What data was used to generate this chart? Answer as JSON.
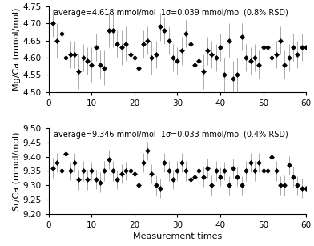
{
  "mg_avg": 4.618,
  "mg_sigma": 0.039,
  "sr_avg": 9.346,
  "sr_sigma": 0.033,
  "mg_title": "average=4.618 mmol/mol  1σ=0.039 mmol/mol (0.8% RSD)",
  "sr_title": "average=9.346 mmol/mol  1σ=0.033 mmol/mol (0.4% RSD)",
  "mg_ylabel": "Mg/Ca (mmol/mol)",
  "sr_ylabel": "Sr/Ca (mmol/mol)",
  "xlabel": "Measurement times",
  "mg_ylim": [
    4.5,
    4.75
  ],
  "sr_ylim": [
    9.2,
    9.5
  ],
  "mg_yticks": [
    4.5,
    4.55,
    4.6,
    4.65,
    4.7,
    4.75
  ],
  "sr_yticks": [
    9.2,
    9.25,
    9.3,
    9.35,
    9.4,
    9.45,
    9.5
  ],
  "xlim": [
    0,
    60
  ],
  "xticks": [
    0,
    10,
    20,
    30,
    40,
    50,
    60
  ],
  "mg_y": [
    4.7,
    4.65,
    4.67,
    4.6,
    4.61,
    4.61,
    4.56,
    4.6,
    4.59,
    4.58,
    4.63,
    4.58,
    4.57,
    4.68,
    4.68,
    4.64,
    4.63,
    4.64,
    4.61,
    4.6,
    4.57,
    4.64,
    4.65,
    4.6,
    4.61,
    4.69,
    4.68,
    4.65,
    4.6,
    4.59,
    4.62,
    4.67,
    4.64,
    4.58,
    4.59,
    4.56,
    4.62,
    4.61,
    4.6,
    4.63,
    4.55,
    4.65,
    4.54,
    4.55,
    4.66,
    4.6,
    4.59,
    4.6,
    4.58,
    4.63,
    4.63,
    4.6,
    4.61,
    4.65,
    4.58,
    4.6,
    4.63,
    4.61,
    4.63,
    4.63
  ],
  "mg_err": [
    0.04,
    0.05,
    0.05,
    0.04,
    0.04,
    0.04,
    0.05,
    0.04,
    0.04,
    0.05,
    0.04,
    0.04,
    0.05,
    0.05,
    0.05,
    0.04,
    0.05,
    0.05,
    0.05,
    0.04,
    0.05,
    0.04,
    0.04,
    0.05,
    0.04,
    0.04,
    0.04,
    0.04,
    0.04,
    0.04,
    0.04,
    0.04,
    0.04,
    0.04,
    0.05,
    0.05,
    0.04,
    0.04,
    0.04,
    0.04,
    0.05,
    0.05,
    0.05,
    0.05,
    0.04,
    0.04,
    0.04,
    0.04,
    0.04,
    0.04,
    0.04,
    0.04,
    0.04,
    0.04,
    0.04,
    0.04,
    0.04,
    0.04,
    0.04,
    0.04
  ],
  "sr_y": [
    9.36,
    9.38,
    9.35,
    9.41,
    9.35,
    9.38,
    9.32,
    9.35,
    9.32,
    9.35,
    9.32,
    9.31,
    9.35,
    9.39,
    9.35,
    9.32,
    9.34,
    9.35,
    9.35,
    9.34,
    9.3,
    9.38,
    9.42,
    9.34,
    9.3,
    9.29,
    9.38,
    9.35,
    9.32,
    9.35,
    9.38,
    9.35,
    9.32,
    9.33,
    9.35,
    9.33,
    9.36,
    9.3,
    9.35,
    9.33,
    9.35,
    9.3,
    9.36,
    9.33,
    9.3,
    9.35,
    9.38,
    9.35,
    9.38,
    9.35,
    9.35,
    9.4,
    9.35,
    9.3,
    9.3,
    9.37,
    9.33,
    9.3,
    9.29,
    9.29
  ],
  "sr_err": [
    0.035,
    0.033,
    0.035,
    0.035,
    0.033,
    0.033,
    0.035,
    0.034,
    0.035,
    0.033,
    0.033,
    0.035,
    0.035,
    0.033,
    0.034,
    0.033,
    0.034,
    0.033,
    0.034,
    0.033,
    0.035,
    0.033,
    0.033,
    0.034,
    0.034,
    0.033,
    0.033,
    0.034,
    0.033,
    0.034,
    0.033,
    0.034,
    0.034,
    0.033,
    0.033,
    0.034,
    0.033,
    0.035,
    0.034,
    0.033,
    0.033,
    0.033,
    0.034,
    0.033,
    0.033,
    0.034,
    0.033,
    0.034,
    0.033,
    0.033,
    0.034,
    0.033,
    0.034,
    0.033,
    0.034,
    0.033,
    0.034,
    0.033,
    0.034,
    0.033
  ],
  "marker_color": "#000000",
  "errorbar_color": "#aaaaaa",
  "marker_size": 3.5,
  "title_fontsize": 7.0,
  "axis_label_fontsize": 8,
  "tick_fontsize": 7.5,
  "fig_width": 3.92,
  "fig_height": 3.07,
  "dpi": 100
}
